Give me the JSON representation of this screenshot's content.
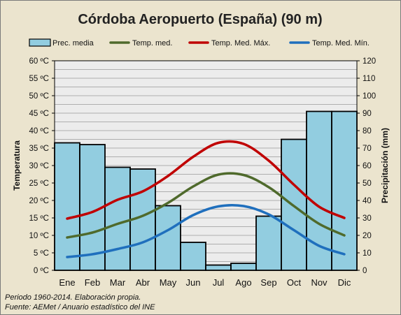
{
  "chart_data": {
    "type": "bar",
    "title": "Córdoba Aeropuerto (España) (90 m)",
    "categories": [
      "Ene",
      "Feb",
      "Mar",
      "Abr",
      "May",
      "Jun",
      "Jul",
      "Ago",
      "Sep",
      "Oct",
      "Nov",
      "Dic"
    ],
    "bar_series": {
      "name": "Prec. media",
      "color": "#92cde0",
      "axis": "right",
      "values": [
        73,
        72,
        59,
        58,
        37,
        16,
        3,
        4,
        31,
        75,
        91,
        91
      ]
    },
    "series": [
      {
        "name": "Temp. med.",
        "color": "#4f6a2c",
        "axis": "left",
        "values": [
          9.4,
          10.8,
          13.3,
          15.6,
          19.3,
          24.0,
          27.4,
          27.3,
          23.8,
          18.4,
          13.3,
          10.0
        ]
      },
      {
        "name": "Temp. Med. Máx.",
        "color": "#c00000",
        "axis": "left",
        "values": [
          14.8,
          16.7,
          20.2,
          22.6,
          27.0,
          32.5,
          36.5,
          36.2,
          31.4,
          24.5,
          18.2,
          15.0
        ]
      },
      {
        "name": "Temp. Med. Mín.",
        "color": "#1f6fbd",
        "axis": "left",
        "values": [
          3.8,
          4.6,
          6.1,
          8.0,
          11.5,
          15.8,
          18.3,
          18.4,
          16.0,
          11.5,
          7.0,
          4.6
        ]
      }
    ],
    "ylabel": "Temperatura",
    "y2label": "Precipitación (mm)",
    "ylim": [
      0,
      60
    ],
    "y2lim": [
      0,
      120
    ],
    "yticks": [
      "0 ºC",
      "5 ºC",
      "10 ºC",
      "15 ºC",
      "20 ºC",
      "25 ºC",
      "30 ºC",
      "35 ºC",
      "40 ºC",
      "45 ºC",
      "50 ºC",
      "55 ºC",
      "60 ºC"
    ],
    "y2ticks": [
      "0",
      "10",
      "20",
      "30",
      "40",
      "50",
      "60",
      "70",
      "80",
      "90",
      "100",
      "110",
      "120"
    ],
    "grid": true,
    "legend_position": "top",
    "plot_background": "#ececec",
    "footer": [
      "Periodo 1960-2014.  Elaboración propia.",
      "Fuente: AEMet / Anuario estadístico del INE"
    ]
  }
}
